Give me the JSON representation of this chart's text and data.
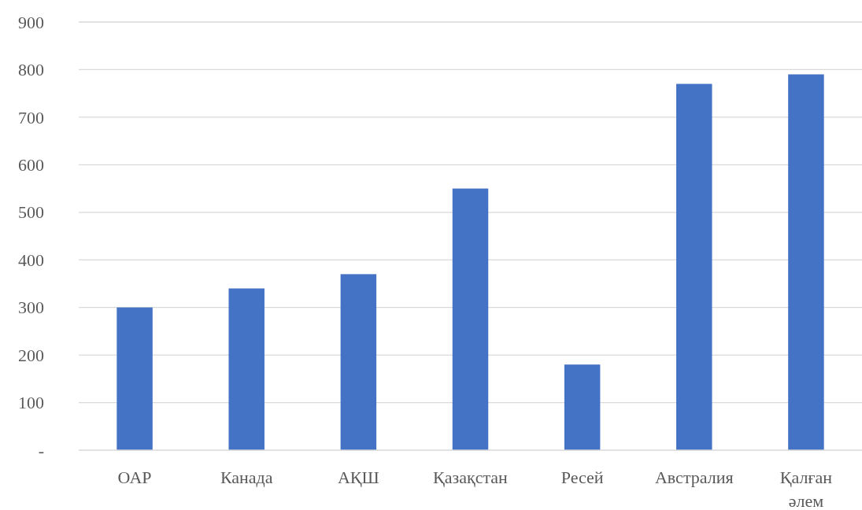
{
  "chart_data": {
    "type": "bar",
    "categories": [
      "ОАР",
      "Канада",
      "АҚШ",
      "Қазақстан",
      "Ресей",
      "Австралия",
      "Қалған әлем"
    ],
    "values": [
      300,
      340,
      370,
      550,
      180,
      770,
      790
    ],
    "color": "#4472c4",
    "ylim": [
      0,
      900
    ],
    "yticks": [
      {
        "value": 0,
        "label": "-"
      },
      100,
      200,
      300,
      400,
      500,
      600,
      700,
      800,
      900
    ],
    "grid": "y"
  }
}
